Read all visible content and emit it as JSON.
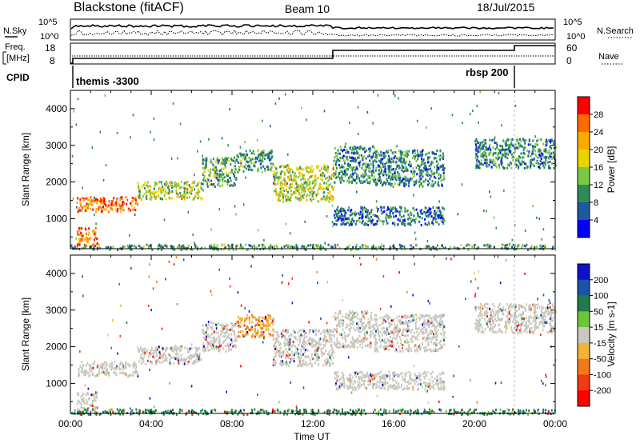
{
  "header": {
    "station": "Blackstone (fitACF)",
    "beam": "Beam 10",
    "date": "18/Jul/2015"
  },
  "top_panel": {
    "left_label": "N.Sky",
    "right_label": "N.Search",
    "left_ticks": [
      "10^5",
      "10^0"
    ],
    "right_ticks": [
      "10^5",
      "10^0"
    ],
    "freq_label": "Freq.",
    "freq_unit": "[MHz]",
    "freq_ticks": [
      "18",
      "8"
    ],
    "nave_label": "Nave",
    "nave_ticks": [
      "60",
      "0"
    ],
    "cpid_label": "CPID",
    "cpid_left": "themis -3300",
    "cpid_right": "rbsp 200"
  },
  "colorbars": {
    "power": {
      "label": "Power [dB]",
      "ticks": [
        "28",
        "24",
        "20",
        "16",
        "12",
        "8",
        "4"
      ],
      "colors": [
        "#ff0000",
        "#ff6a00",
        "#ffaa00",
        "#e8d400",
        "#7ac943",
        "#2e8b57",
        "#1d5a9e",
        "#0000ff"
      ]
    },
    "velocity": {
      "label": "Velocity [m s-1]",
      "ticks": [
        "200",
        "100",
        "50",
        "15",
        "-15",
        "-50",
        "-100",
        "-200"
      ],
      "colors": [
        "#1010c8",
        "#1a55a8",
        "#237a4e",
        "#6cc43a",
        "#c8c8c0",
        "#f0b43a",
        "#f07a1a",
        "#f03a10",
        "#ff0000"
      ]
    }
  },
  "chart_data": [
    {
      "type": "heatmap",
      "name": "power",
      "ylabel": "Slant Range [km]",
      "y_ticks": [
        "4000",
        "3000",
        "2000",
        "1000"
      ],
      "ylim": [
        180,
        4500
      ],
      "xlim": [
        0,
        24
      ],
      "x_ticks": [
        "00:00",
        "04:00",
        "08:00",
        "12:00",
        "16:00",
        "20:00",
        "00:00"
      ],
      "features": [
        {
          "t0": 0.3,
          "t1": 3.3,
          "r0": 1220,
          "r1": 1620,
          "level": 0.85
        },
        {
          "t0": 3.3,
          "t1": 6.5,
          "r0": 1550,
          "r1": 2050,
          "level": 0.5
        },
        {
          "t0": 6.5,
          "t1": 8.2,
          "r0": 1900,
          "r1": 2700,
          "level": 0.35
        },
        {
          "t0": 8.2,
          "t1": 10.0,
          "r0": 2300,
          "r1": 2900,
          "level": 0.3
        },
        {
          "t0": 10.0,
          "t1": 13.0,
          "r0": 1500,
          "r1": 2500,
          "level": 0.5
        },
        {
          "t0": 13.0,
          "t1": 18.5,
          "r0": 850,
          "r1": 1350,
          "level": 0.2
        },
        {
          "t0": 15.0,
          "t1": 18.5,
          "r0": 1900,
          "r1": 2900,
          "level": 0.25
        },
        {
          "t0": 13.0,
          "t1": 15.0,
          "r0": 2000,
          "r1": 3000,
          "level": 0.25
        },
        {
          "t0": 20.0,
          "t1": 24.0,
          "r0": 2400,
          "r1": 3200,
          "level": 0.25
        },
        {
          "t0": 0.3,
          "t1": 1.3,
          "r0": 280,
          "r1": 780,
          "level": 0.8
        },
        {
          "t0": 0.0,
          "t1": 24.0,
          "r0": 180,
          "r1": 320,
          "level": 0.3
        }
      ]
    },
    {
      "type": "heatmap",
      "name": "velocity",
      "ylabel": "Slant Range [km]",
      "xlabel": "Time UT",
      "y_ticks": [
        "4000",
        "3000",
        "2000",
        "1000"
      ],
      "ylim": [
        180,
        4500
      ],
      "xlim": [
        0,
        24
      ],
      "x_ticks": [
        "00:00",
        "04:00",
        "08:00",
        "12:00",
        "16:00",
        "20:00",
        "00:00"
      ],
      "features": [
        {
          "t0": 0.3,
          "t1": 3.3,
          "r0": 1220,
          "r1": 1620,
          "vel": 0
        },
        {
          "t0": 3.3,
          "t1": 6.5,
          "r0": 1550,
          "r1": 2050,
          "vel": 0
        },
        {
          "t0": 6.5,
          "t1": 8.2,
          "r0": 1900,
          "r1": 2700,
          "vel": 0
        },
        {
          "t0": 8.2,
          "t1": 10.0,
          "r0": 2300,
          "r1": 2900,
          "vel": -30
        },
        {
          "t0": 10.0,
          "t1": 13.0,
          "r0": 1500,
          "r1": 2500,
          "vel": 0
        },
        {
          "t0": 13.0,
          "t1": 18.5,
          "r0": 850,
          "r1": 1350,
          "vel": 0
        },
        {
          "t0": 15.0,
          "t1": 18.5,
          "r0": 1900,
          "r1": 2900,
          "vel": 0
        },
        {
          "t0": 13.0,
          "t1": 15.0,
          "r0": 2000,
          "r1": 3000,
          "vel": 0
        },
        {
          "t0": 20.0,
          "t1": 24.0,
          "r0": 2400,
          "r1": 3200,
          "vel": 0
        },
        {
          "t0": 0.3,
          "t1": 1.3,
          "r0": 280,
          "r1": 780,
          "vel": 0
        },
        {
          "t0": 0.0,
          "t1": 24.0,
          "r0": 180,
          "r1": 320,
          "vel": 40
        }
      ]
    }
  ]
}
